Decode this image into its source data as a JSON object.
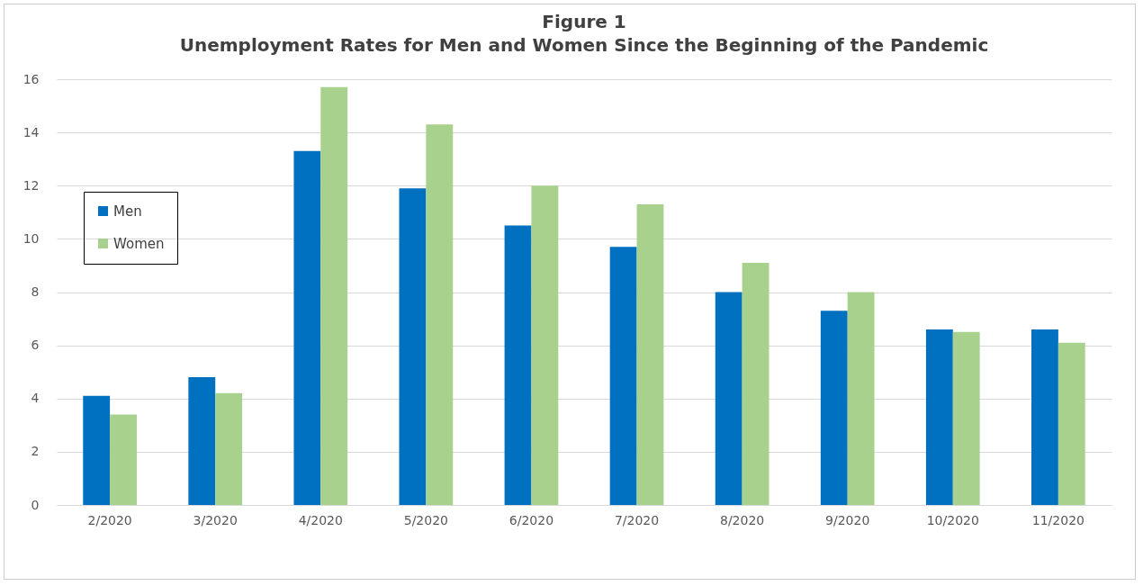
{
  "chart_data": {
    "type": "bar",
    "title": "Figure 1",
    "subtitle": "Unemployment Rates for Men and Women Since the Beginning of the Pandemic",
    "categories": [
      "2/2020",
      "3/2020",
      "4/2020",
      "5/2020",
      "6/2020",
      "7/2020",
      "8/2020",
      "9/2020",
      "10/2020",
      "11/2020"
    ],
    "series": [
      {
        "name": "Men",
        "color": "#0070c0",
        "values": [
          4.1,
          4.8,
          13.3,
          11.9,
          10.5,
          9.7,
          8.0,
          7.3,
          6.6,
          6.6
        ]
      },
      {
        "name": "Women",
        "color": "#a9d18e",
        "values": [
          3.4,
          4.2,
          15.7,
          14.3,
          12.0,
          11.3,
          9.1,
          8.0,
          6.5,
          6.1
        ]
      }
    ],
    "ylim": [
      0,
      16
    ],
    "yticks": [
      0,
      2,
      4,
      6,
      8,
      10,
      12,
      14,
      16
    ],
    "grid": "y",
    "legend": "left"
  }
}
